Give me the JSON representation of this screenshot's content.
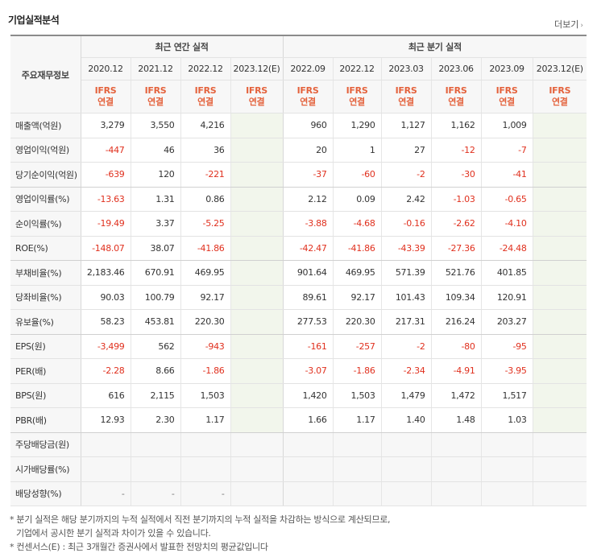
{
  "title": "기업실적분석",
  "more_label": "더보기",
  "header": {
    "row_label": "주요재무정보",
    "annual_group": "최근 연간 실적",
    "quarter_group": "최근 분기 실적",
    "periods": [
      "2020.12",
      "2021.12",
      "2022.12",
      "2023.12(E)",
      "2022.09",
      "2022.12",
      "2023.03",
      "2023.06",
      "2023.09",
      "2023.12(E)"
    ],
    "ifrs_top": "IFRS",
    "ifrs_bottom": "연결"
  },
  "rows": [
    {
      "label": "매출액(억원)",
      "values": [
        "3,279",
        "3,550",
        "4,216",
        "",
        "960",
        "1,290",
        "1,127",
        "1,162",
        "1,009",
        ""
      ]
    },
    {
      "label": "영업이익(억원)",
      "values": [
        "-447",
        "46",
        "36",
        "",
        "20",
        "1",
        "27",
        "-12",
        "-7",
        ""
      ]
    },
    {
      "label": "당기순이익(억원)",
      "values": [
        "-639",
        "120",
        "-221",
        "",
        "-37",
        "-60",
        "-2",
        "-30",
        "-41",
        ""
      ]
    },
    {
      "label": "영업이익률(%)",
      "values": [
        "-13.63",
        "1.31",
        "0.86",
        "",
        "2.12",
        "0.09",
        "2.42",
        "-1.03",
        "-0.65",
        ""
      ]
    },
    {
      "label": "순이익률(%)",
      "values": [
        "-19.49",
        "3.37",
        "-5.25",
        "",
        "-3.88",
        "-4.68",
        "-0.16",
        "-2.62",
        "-4.10",
        ""
      ]
    },
    {
      "label": "ROE(%)",
      "values": [
        "-148.07",
        "38.07",
        "-41.86",
        "",
        "-42.47",
        "-41.86",
        "-43.39",
        "-27.36",
        "-24.48",
        ""
      ]
    },
    {
      "label": "부채비율(%)",
      "values": [
        "2,183.46",
        "670.91",
        "469.95",
        "",
        "901.64",
        "469.95",
        "571.39",
        "521.76",
        "401.85",
        ""
      ]
    },
    {
      "label": "당좌비율(%)",
      "values": [
        "90.03",
        "100.79",
        "92.17",
        "",
        "89.61",
        "92.17",
        "101.43",
        "109.34",
        "120.91",
        ""
      ]
    },
    {
      "label": "유보율(%)",
      "values": [
        "58.23",
        "453.81",
        "220.30",
        "",
        "277.53",
        "220.30",
        "217.31",
        "216.24",
        "203.27",
        ""
      ]
    },
    {
      "label": "EPS(원)",
      "values": [
        "-3,499",
        "562",
        "-943",
        "",
        "-161",
        "-257",
        "-2",
        "-80",
        "-95",
        ""
      ]
    },
    {
      "label": "PER(배)",
      "values": [
        "-2.28",
        "8.66",
        "-1.86",
        "",
        "-3.07",
        "-1.86",
        "-2.34",
        "-4.91",
        "-3.95",
        ""
      ]
    },
    {
      "label": "BPS(원)",
      "values": [
        "616",
        "2,115",
        "1,503",
        "",
        "1,420",
        "1,503",
        "1,479",
        "1,472",
        "1,517",
        ""
      ]
    },
    {
      "label": "PBR(배)",
      "values": [
        "12.93",
        "2.30",
        "1.17",
        "",
        "1.66",
        "1.17",
        "1.40",
        "1.48",
        "1.03",
        ""
      ]
    },
    {
      "label": "주당배당금(원)",
      "values": [
        "",
        "",
        "",
        "",
        "",
        "",
        "",
        "",
        "",
        ""
      ]
    },
    {
      "label": "시가배당률(%)",
      "values": [
        "",
        "",
        "",
        "",
        "",
        "",
        "",
        "",
        "",
        ""
      ]
    },
    {
      "label": "배당성향(%)",
      "values": [
        "-",
        "-",
        "-",
        "",
        "",
        "",
        "",
        "",
        "",
        ""
      ]
    }
  ],
  "notes": [
    "* 분기 실적은 해당 분기까지의 누적 실적에서 직전 분기까지의 누적 실적을 차감하는 방식으로 계산되므로,",
    "  기업에서 공시한 분기 실적과 차이가 있을 수 있습니다.",
    "* 컨센서스(E) : 최근 3개월간 증권사에서 발표한 전망치의 평균값입니다"
  ],
  "colors": {
    "negative": "#e0301e",
    "ifrs": "#e4623c",
    "estimate": "#43a04a"
  }
}
